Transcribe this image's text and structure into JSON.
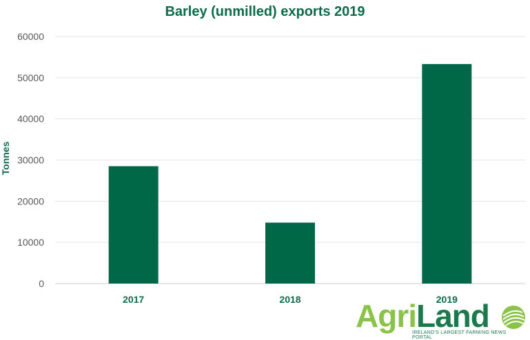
{
  "chart_data": {
    "type": "bar",
    "title": "Barley (unmilled) exports 2019",
    "xlabel": "",
    "ylabel": "Tonnes",
    "categories": [
      "2017",
      "2018",
      "2019"
    ],
    "values": [
      28500,
      14800,
      53300
    ],
    "ylim": [
      0,
      60000
    ],
    "yticks": [
      0,
      10000,
      20000,
      30000,
      40000,
      50000,
      60000
    ],
    "grid": true,
    "bar_color": "#006747"
  },
  "logo": {
    "text": "AgriLand",
    "tagline": "IRELAND'S LARGEST FARMING NEWS PORTAL",
    "color_primary": "#1a7a4c",
    "color_accent": "#8bc34a"
  }
}
